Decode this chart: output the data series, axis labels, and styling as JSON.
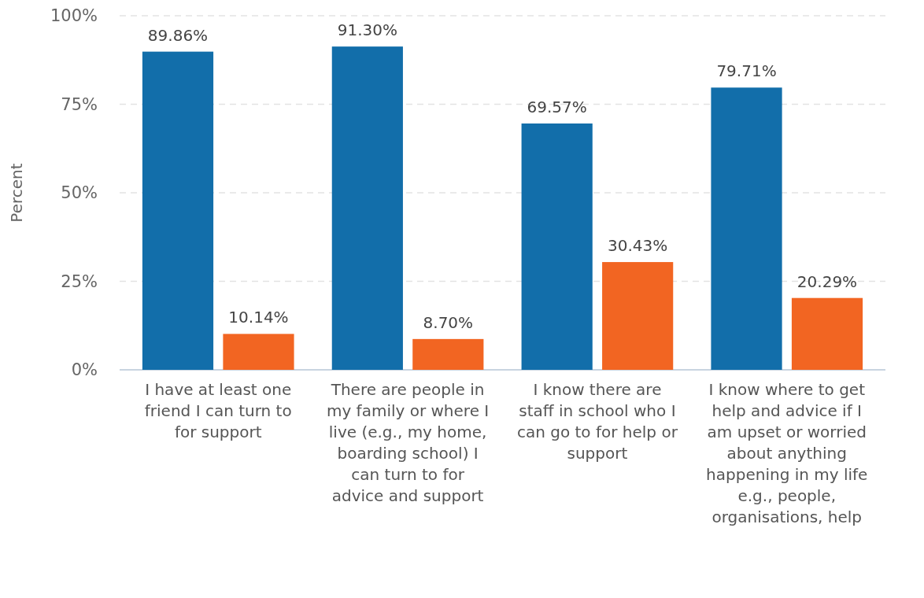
{
  "chart_data": {
    "type": "bar",
    "ylabel": "Percent",
    "categories": [
      "I have at least one friend I can turn to for support",
      "There are people in my family or where I live (e.g., my home, boarding school) I can turn to for advice and support",
      "I know there are staff in school who I can go to for help or support",
      "I know where to get help and advice if I am upset or worried about anything happening in my life e.g., people, organisations, help"
    ],
    "series": [
      {
        "color": "#126eaa",
        "values": [
          89.86,
          91.3,
          69.57,
          79.71
        ],
        "value_labels": [
          "89.86%",
          "91.30%",
          "69.57%",
          "79.71%"
        ]
      },
      {
        "color": "#f26522",
        "values": [
          10.14,
          8.7,
          30.43,
          20.29
        ],
        "value_labels": [
          "10.14%",
          "8.70%",
          "30.43%",
          "20.29%"
        ]
      }
    ],
    "ylim": [
      0,
      100
    ],
    "yticks": [
      {
        "value": 0,
        "label": "0%"
      },
      {
        "value": 25,
        "label": "25%"
      },
      {
        "value": 50,
        "label": "50%"
      },
      {
        "value": 75,
        "label": "75%"
      },
      {
        "value": 100,
        "label": "100%"
      }
    ],
    "grid": "y"
  }
}
